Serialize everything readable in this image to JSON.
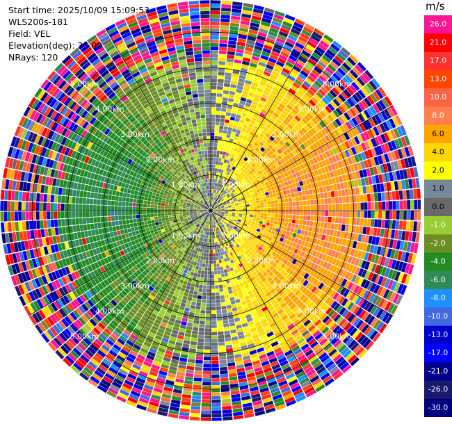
{
  "header": {
    "start_time": "Start time: 2025/10/09 15:09:53",
    "station": "WLS200s-181",
    "field": "Field: VEL",
    "elevation": "Elevation(deg): 35.00",
    "nrays": "NRays: 120"
  },
  "chart_data": {
    "type": "heatmap",
    "subtype": "polar-ppi",
    "field": "VEL",
    "units": "m/s",
    "elevation_deg": 35.0,
    "nrays": 120,
    "range_rings_km": [
      1.0,
      2.0,
      3.0,
      4.0,
      5.0
    ],
    "ring_labels": [
      "1.00km",
      "2.00km",
      "3.00km",
      "4.00km",
      "5.00km"
    ],
    "max_range_km": 5.9,
    "radial_lines_deg": [
      0,
      30,
      60,
      90,
      120,
      150,
      180,
      210,
      240,
      270,
      300,
      330
    ],
    "colorbar": {
      "label": "m/s",
      "ticks": [
        "26.0",
        "21.0",
        "17.0",
        "13.0",
        "10.0",
        "8.0",
        "6.0",
        "4.0",
        "2.0",
        "1.0",
        "0.0",
        "-1.0",
        "-2.0",
        "-4.0",
        "-6.0",
        "-8.0",
        "-10.0",
        "-13.0",
        "-17.0",
        "-21.0",
        "-26.0",
        "-30.0"
      ],
      "colors": [
        "#ff1493",
        "#ff0000",
        "#ff3030",
        "#ff4500",
        "#ff6347",
        "#ff7f50",
        "#ffa500",
        "#ffd700",
        "#ffff00",
        "#778899",
        "#696969",
        "#9acd32",
        "#6b8e23",
        "#228b22",
        "#2e8b57",
        "#1e90ff",
        "#4169e1",
        "#0000cd",
        "#0000ff",
        "#00008b",
        "#191970",
        "#000080"
      ]
    },
    "velocity_pattern": {
      "positive_sector_deg": [
        0,
        180
      ],
      "negative_sector_deg": [
        180,
        360
      ],
      "max_abs_inner_mps": 6.0,
      "noise_beyond_km": 4.3
    }
  }
}
